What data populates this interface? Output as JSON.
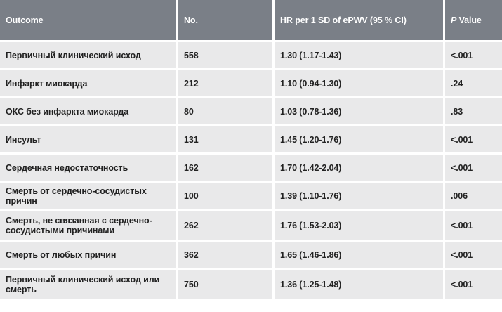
{
  "table": {
    "headers": {
      "outcome": "Outcome",
      "no": "No.",
      "hr": "HR per 1 SD of ePWV (95 % CI)",
      "p_letter": "P",
      "p_rest": " Value"
    },
    "rows": [
      {
        "outcome": "Первичный клинический исход",
        "no": "558",
        "hr": "1.30 (1.17-1.43)",
        "p": "<.001"
      },
      {
        "outcome": "Инфаркт миокарда",
        "no": "212",
        "hr": "1.10 (0.94-1.30)",
        "p": ".24"
      },
      {
        "outcome": "ОКС без инфаркта миокарда",
        "no": "80",
        "hr": "1.03 (0.78-1.36)",
        "p": ".83"
      },
      {
        "outcome": "Инсульт",
        "no": "131",
        "hr": "1.45 (1.20-1.76)",
        "p": "<.001"
      },
      {
        "outcome": "Сердечная недостаточность",
        "no": "162",
        "hr": "1.70 (1.42-2.04)",
        "p": "<.001"
      },
      {
        "outcome": "Смерть от сердечно-сосудистых причин",
        "no": "100",
        "hr": "1.39 (1.10-1.76)",
        "p": ".006"
      },
      {
        "outcome": "Смерть, не связанная с сердечно-сосудистыми причинами",
        "no": "262",
        "hr": "1.76 (1.53-2.03)",
        "p": "<.001"
      },
      {
        "outcome": "Смерть от любых причин",
        "no": "362",
        "hr": "1.65 (1.46-1.86)",
        "p": "<.001"
      },
      {
        "outcome": "Первичный клинический исход или смерть",
        "no": "750",
        "hr": "1.36 (1.25-1.48)",
        "p": "<.001"
      }
    ]
  }
}
